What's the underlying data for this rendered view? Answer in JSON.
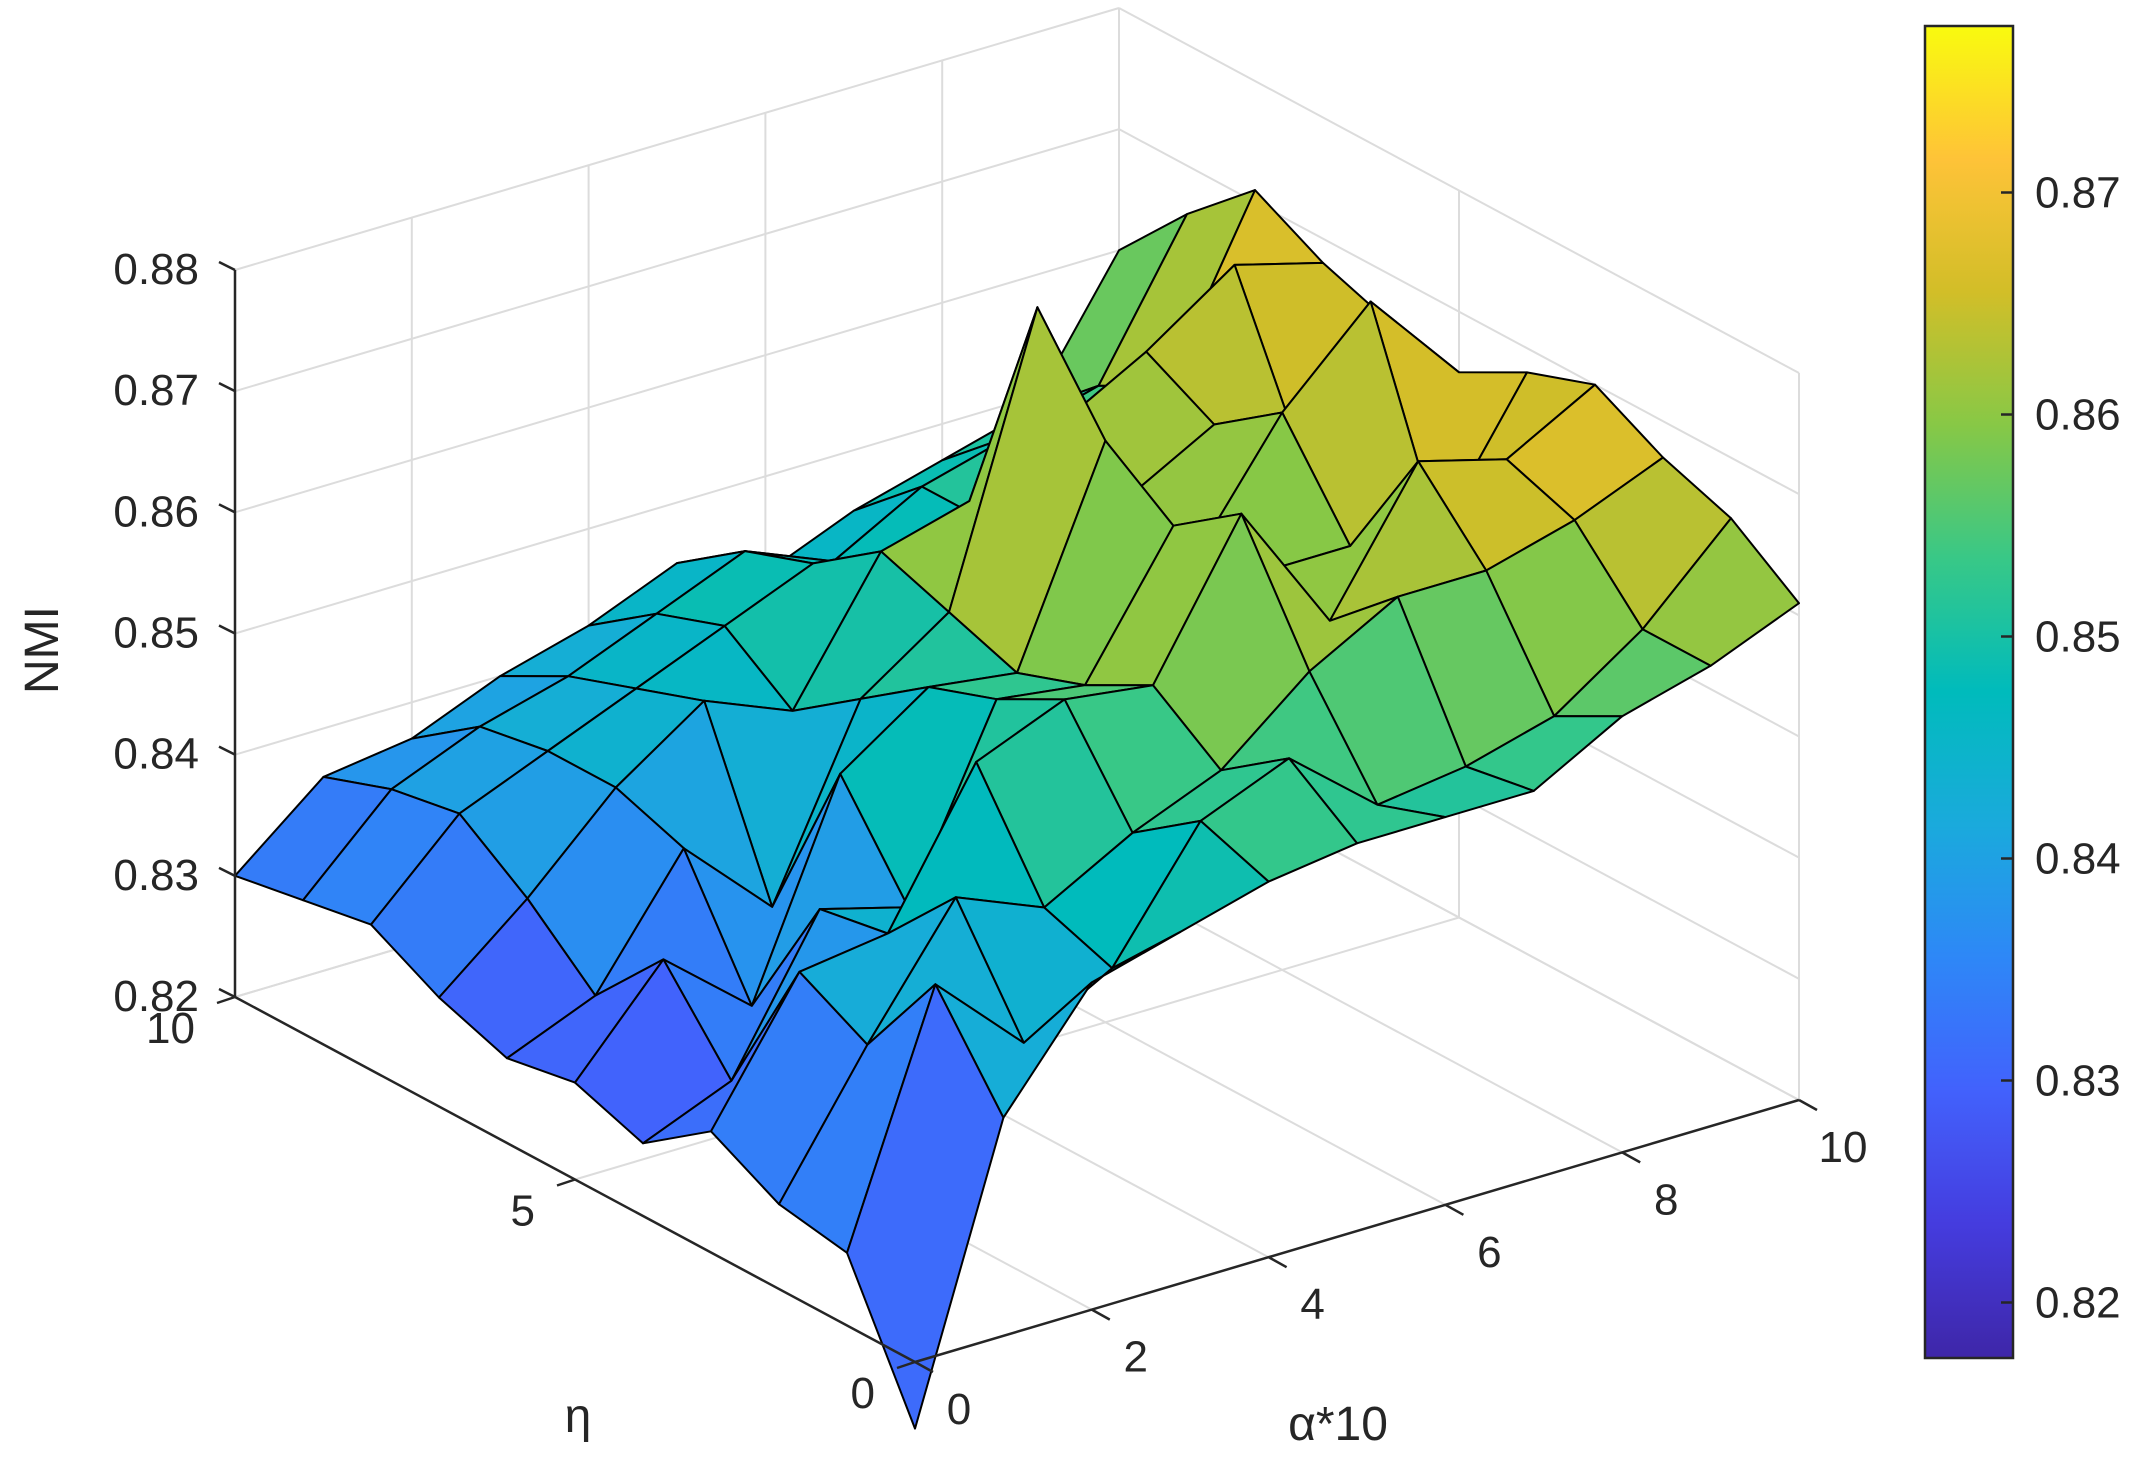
{
  "chart_data": {
    "type": "surface",
    "xlabel": "α*10",
    "ylabel": "η",
    "zlabel": "NMI",
    "x": [
      0,
      1,
      2,
      3,
      4,
      5,
      6,
      7,
      8,
      9,
      10
    ],
    "y": [
      0,
      1,
      2,
      3,
      4,
      5,
      6,
      7,
      8,
      9,
      10
    ],
    "xticks": [
      0,
      2,
      4,
      6,
      8,
      10
    ],
    "yticks": [
      0,
      5,
      10
    ],
    "zticks": [
      0.82,
      0.83,
      0.84,
      0.85,
      0.86,
      0.87,
      0.88
    ],
    "xlim": [
      0,
      10
    ],
    "ylim": [
      0,
      10
    ],
    "zlim": [
      0.82,
      0.88
    ],
    "grid": true,
    "colormap": "parula",
    "colorbar": {
      "location": "right",
      "clim": [
        0.8175,
        0.8775
      ],
      "ticks": [
        0.82,
        0.83,
        0.84,
        0.85,
        0.86,
        0.87
      ]
    },
    "z": [
      [
        0.8145,
        0.838,
        0.847,
        0.849,
        0.851,
        0.852,
        0.852,
        0.852,
        0.856,
        0.858,
        0.861
      ],
      [
        0.826,
        0.846,
        0.839,
        0.843,
        0.853,
        0.856,
        0.85,
        0.851,
        0.853,
        0.858,
        0.865
      ],
      [
        0.827,
        0.838,
        0.848,
        0.845,
        0.849,
        0.852,
        0.858,
        0.862,
        0.862,
        0.864,
        0.867
      ],
      [
        0.83,
        0.841,
        0.842,
        0.854,
        0.857,
        0.856,
        0.868,
        0.857,
        0.868,
        0.866,
        0.87
      ],
      [
        0.826,
        0.829,
        0.841,
        0.839,
        0.854,
        0.853,
        0.864,
        0.858,
        0.858,
        0.857,
        0.868
      ],
      [
        0.828,
        0.836,
        0.83,
        0.847,
        0.852,
        0.851,
        0.868,
        0.856,
        0.866,
        0.873,
        0.865
      ],
      [
        0.827,
        0.83,
        0.84,
        0.833,
        0.848,
        0.853,
        0.876,
        0.858,
        0.862,
        0.857,
        0.866
      ],
      [
        0.829,
        0.835,
        0.842,
        0.847,
        0.844,
        0.855,
        0.857,
        0.861,
        0.865,
        0.87,
        0.868
      ],
      [
        0.832,
        0.839,
        0.842,
        0.845,
        0.848,
        0.851,
        0.846,
        0.85,
        0.853,
        0.857,
        0.871
      ],
      [
        0.831,
        0.838,
        0.841,
        0.843,
        0.846,
        0.849,
        0.846,
        0.85,
        0.852,
        0.854,
        0.866
      ],
      [
        0.83,
        0.836,
        0.837,
        0.84,
        0.842,
        0.845,
        0.842,
        0.845,
        0.847,
        0.849,
        0.86
      ]
    ]
  }
}
